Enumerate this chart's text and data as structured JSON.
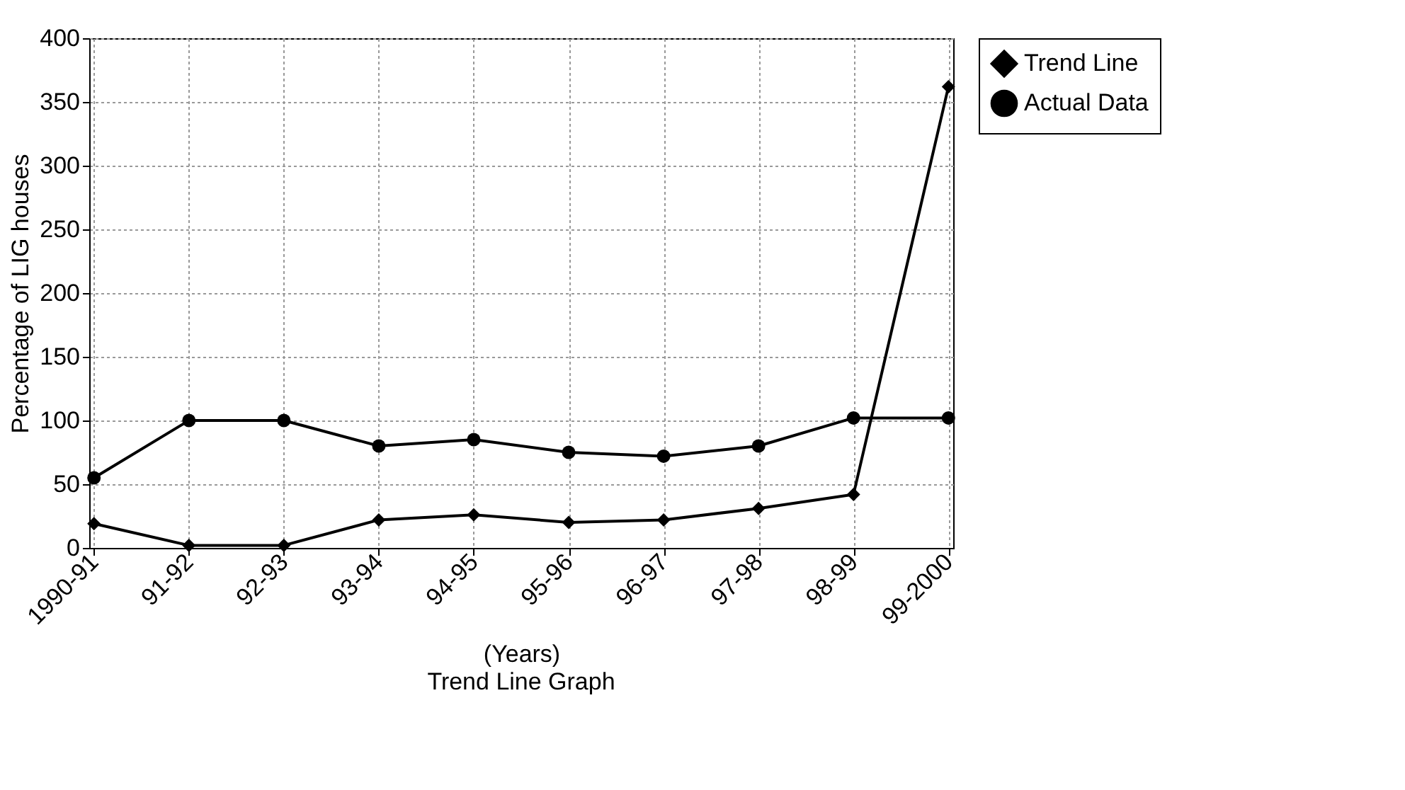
{
  "chart_data": {
    "type": "line",
    "title": "Trend Line Graph",
    "xlabel": "(Years)",
    "ylabel": "Percentage of LIG houses",
    "categories": [
      "1990-91",
      "91-92",
      "92-93",
      "93-94",
      "94-95",
      "95-96",
      "96-97",
      "97-98",
      "98-99",
      "99-2000"
    ],
    "series": [
      {
        "name": "Trend Line",
        "color": "#000000",
        "marker": "diamond",
        "values": [
          19,
          2,
          2,
          22,
          26,
          20,
          22,
          31,
          42,
          362
        ]
      },
      {
        "name": "Actual Data",
        "color": "#000000",
        "marker": "circle",
        "values": [
          55,
          100,
          100,
          80,
          85,
          75,
          72,
          80,
          102,
          102
        ]
      }
    ],
    "ylim": [
      0,
      400
    ],
    "yticks": [
      0,
      50,
      100,
      150,
      200,
      250,
      300,
      350,
      400
    ],
    "grid": true,
    "legend": "right",
    "line_style": "solid"
  }
}
